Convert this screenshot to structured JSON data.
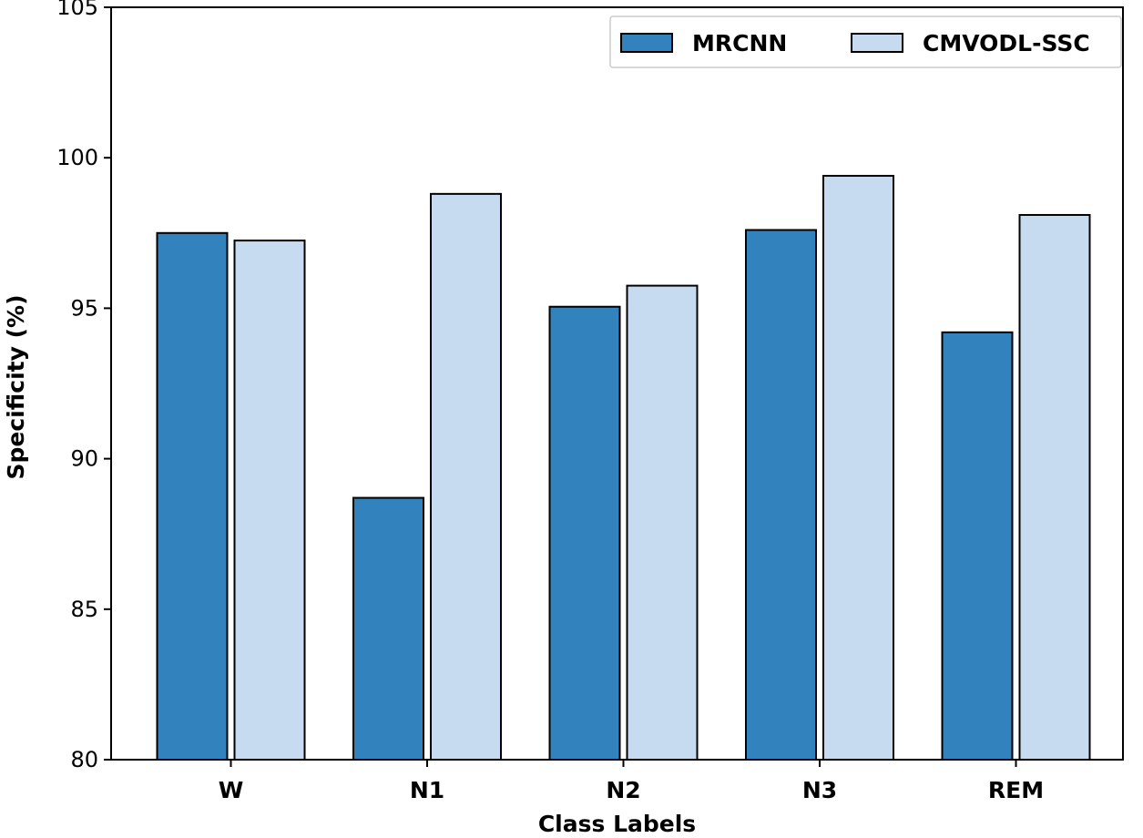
{
  "chart_data": {
    "type": "bar",
    "categories": [
      "W",
      "N1",
      "N2",
      "N3",
      "REM"
    ],
    "series": [
      {
        "name": "MRCNN",
        "values": [
          97.5,
          88.7,
          95.05,
          97.6,
          94.2
        ],
        "color": "#3182bd"
      },
      {
        "name": "CMVODL-SSC",
        "values": [
          97.25,
          98.8,
          95.75,
          99.4,
          98.1
        ],
        "color": "#c6dbef"
      }
    ],
    "xlabel": "Class Labels",
    "ylabel": "Specificity (%)",
    "ylim": [
      80,
      105
    ],
    "yticks": [
      "80",
      "85",
      "90",
      "95",
      "100",
      "105"
    ],
    "legend": "top-right",
    "grid": false
  }
}
